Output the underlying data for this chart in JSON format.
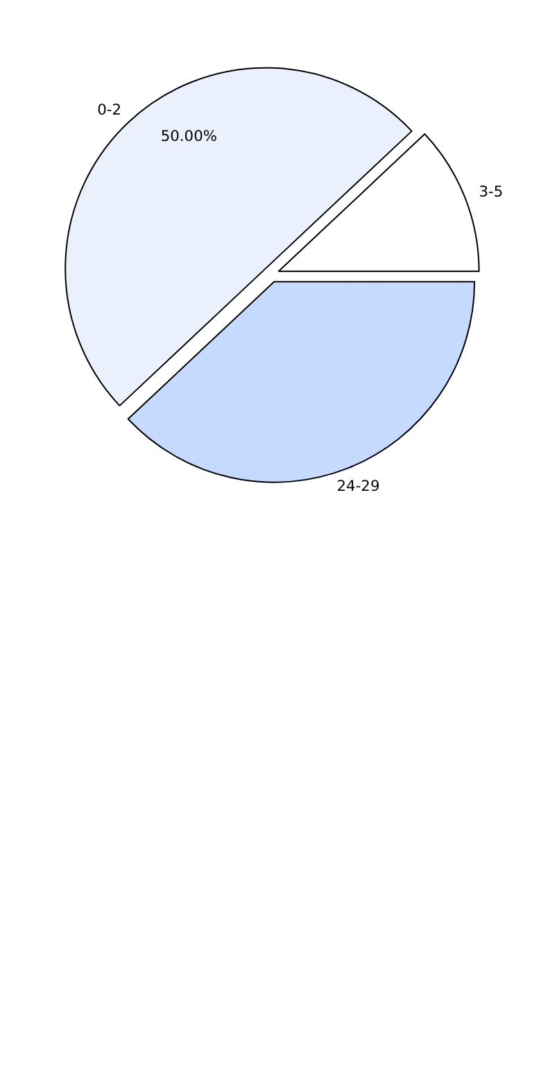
{
  "chart_data": {
    "type": "pie",
    "categories": [
      "3-5",
      "0-2",
      "24-29"
    ],
    "values": [
      12,
      50,
      38
    ],
    "colors": [
      "#ffffff",
      "#eaf1fd",
      "#c6d9fe"
    ],
    "value_labels": [
      null,
      "50.00%",
      null
    ]
  }
}
